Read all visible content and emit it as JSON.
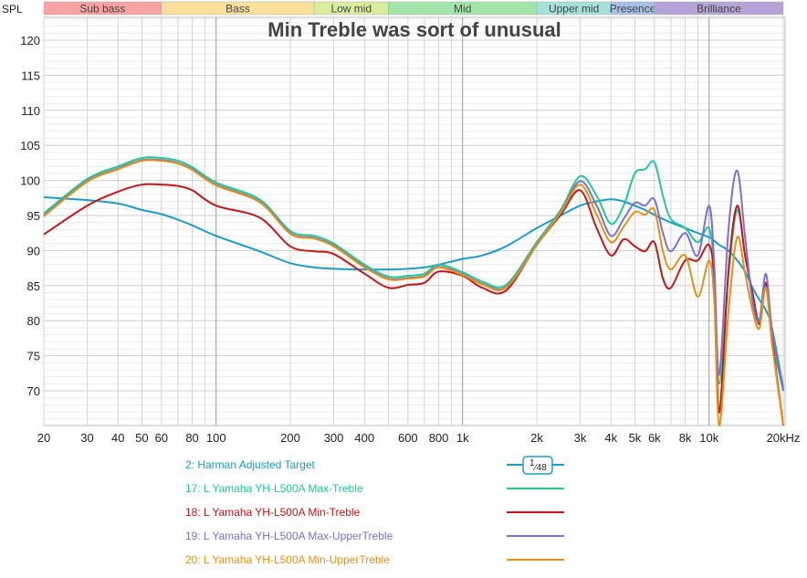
{
  "chart_data": {
    "type": "line",
    "title": "Min Treble was sort of unusual",
    "ylabel": "SPL",
    "x_scale": "log",
    "xlim": [
      20,
      20000
    ],
    "ylim": [
      65,
      123
    ],
    "grid": true,
    "legend_placement": "bottom",
    "x_ticks": [
      {
        "v": 20,
        "label": "20"
      },
      {
        "v": 30,
        "label": "30"
      },
      {
        "v": 40,
        "label": "40"
      },
      {
        "v": 50,
        "label": "50"
      },
      {
        "v": 60,
        "label": "60"
      },
      {
        "v": 80,
        "label": "80"
      },
      {
        "v": 100,
        "label": "100"
      },
      {
        "v": 200,
        "label": "200"
      },
      {
        "v": 300,
        "label": "300"
      },
      {
        "v": 400,
        "label": "400"
      },
      {
        "v": 600,
        "label": "600"
      },
      {
        "v": 800,
        "label": "800"
      },
      {
        "v": 1000,
        "label": "1k"
      },
      {
        "v": 2000,
        "label": "2k"
      },
      {
        "v": 3000,
        "label": "3k"
      },
      {
        "v": 4000,
        "label": "4k"
      },
      {
        "v": 5000,
        "label": "5k"
      },
      {
        "v": 6000,
        "label": "6k"
      },
      {
        "v": 8000,
        "label": "8k"
      },
      {
        "v": 10000,
        "label": "10k"
      },
      {
        "v": 20000,
        "label": "20kHz"
      }
    ],
    "y_ticks": [
      120,
      115,
      110,
      105,
      100,
      95,
      90,
      85,
      80,
      75,
      70
    ],
    "bands": [
      {
        "label": "Sub bass",
        "from": 20,
        "to": 60,
        "color": "#f7a3a3"
      },
      {
        "label": "Bass",
        "from": 60,
        "to": 250,
        "color": "#f9e09b"
      },
      {
        "label": "Low mid",
        "from": 250,
        "to": 500,
        "color": "#d9ed9d"
      },
      {
        "label": "Mid",
        "from": 500,
        "to": 2000,
        "color": "#a3e4a8"
      },
      {
        "label": "Upper mid",
        "from": 2000,
        "to": 4000,
        "color": "#a3e1da"
      },
      {
        "label": "Presence",
        "from": 4000,
        "to": 6000,
        "color": "#a8bfe8"
      },
      {
        "label": "Brilliance",
        "from": 6000,
        "to": 20000,
        "color": "#b6a4d8"
      }
    ],
    "x": [
      20,
      30,
      40,
      50,
      60,
      70,
      80,
      100,
      150,
      200,
      250,
      300,
      400,
      500,
      600,
      700,
      800,
      1000,
      1200,
      1500,
      2000,
      2500,
      3000,
      3500,
      4000,
      4500,
      5000,
      5500,
      6000,
      6500,
      7000,
      8000,
      9000,
      10000,
      10500,
      11000,
      12000,
      13000,
      14000,
      15000,
      16000,
      17000,
      18000,
      20000
    ],
    "series": [
      {
        "name": "2: Harman Adjusted Target",
        "color": "#1a9dc8",
        "smoothing": "1/48",
        "values": [
          97.6,
          97.2,
          96.7,
          95.8,
          95.2,
          94.4,
          93.6,
          92.1,
          89.9,
          88.2,
          87.6,
          87.4,
          87.3,
          87.3,
          87.4,
          87.6,
          88.0,
          88.8,
          89.3,
          90.6,
          93.2,
          95.0,
          96.4,
          97.0,
          97.3,
          97.0,
          96.4,
          95.8,
          95.1,
          94.5,
          94.0,
          93.2,
          92.5,
          91.9,
          91.4,
          90.8,
          90.0,
          88.6,
          87.0,
          84.7,
          83.0,
          81.5,
          79.0,
          70.4
        ]
      },
      {
        "name": "17: L Yamaha YH-L500A Max-Treble",
        "color": "#20c997",
        "values": [
          95.3,
          100.2,
          102.0,
          103.2,
          103.2,
          102.8,
          101.9,
          99.7,
          97.3,
          92.8,
          92.1,
          91.0,
          88.0,
          86.3,
          86.4,
          86.7,
          88.0,
          86.9,
          85.6,
          85.1,
          91.2,
          95.8,
          100.6,
          97.8,
          93.8,
          96.4,
          101.0,
          101.6,
          102.6,
          97.8,
          94.5,
          93.2,
          91.2,
          93.2,
          86.7,
          71.0,
          86.7,
          95.8,
          89.3,
          84.0,
          80.0,
          85.4,
          77.5,
          70.0
        ]
      },
      {
        "name": "18: L Yamaha YH-L500A Min-Treble",
        "color": "#c81515",
        "values": [
          92.3,
          96.4,
          98.4,
          99.4,
          99.4,
          99.2,
          98.6,
          96.4,
          94.7,
          90.6,
          89.9,
          89.5,
          86.7,
          84.7,
          85.1,
          85.4,
          87.0,
          86.4,
          84.7,
          84.3,
          90.8,
          95.1,
          98.6,
          93.2,
          89.3,
          91.6,
          90.6,
          89.9,
          91.2,
          86.0,
          84.7,
          88.6,
          88.6,
          90.8,
          85.4,
          66.9,
          87.3,
          96.4,
          89.3,
          84.0,
          79.5,
          85.4,
          77.5,
          65.0
        ]
      },
      {
        "name": "19: L Yamaha YH-L500A Max-UpperTreble",
        "color": "#7b70d6",
        "values": [
          95.0,
          99.9,
          101.7,
          102.9,
          102.9,
          102.5,
          101.6,
          99.4,
          97.0,
          92.5,
          91.8,
          90.7,
          87.7,
          86.0,
          86.1,
          86.4,
          87.7,
          86.6,
          85.3,
          84.8,
          90.9,
          95.5,
          99.9,
          96.4,
          92.1,
          94.5,
          96.8,
          96.4,
          97.3,
          92.5,
          89.9,
          92.5,
          89.3,
          96.4,
          88.0,
          72.3,
          93.2,
          101.4,
          91.9,
          82.8,
          80.0,
          86.7,
          78.9,
          70.0
        ]
      },
      {
        "name": "20: L Yamaha YH-L500A Min-UpperTreble",
        "color": "#e8900f",
        "values": [
          94.9,
          99.8,
          101.6,
          102.8,
          102.8,
          102.4,
          101.5,
          99.3,
          96.9,
          92.4,
          91.7,
          90.6,
          87.6,
          85.9,
          86.0,
          86.3,
          87.6,
          86.5,
          85.2,
          84.7,
          90.8,
          95.4,
          99.4,
          95.1,
          91.2,
          93.4,
          95.5,
          95.1,
          95.8,
          89.9,
          87.3,
          89.3,
          83.4,
          88.6,
          82.8,
          65.0,
          81.5,
          91.9,
          86.7,
          81.5,
          78.9,
          84.7,
          76.8,
          65.0
        ]
      }
    ]
  }
}
